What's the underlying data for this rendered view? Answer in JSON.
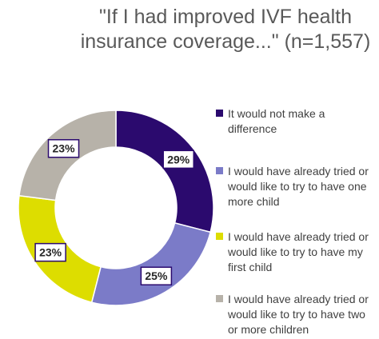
{
  "chart_data": {
    "type": "pie",
    "style": "donut",
    "title_lines": [
      "\"If I had improved IVF health",
      "insurance coverage...\" (n=1,557)"
    ],
    "slices": [
      {
        "label_lines": [
          "It would not make a",
          "difference"
        ],
        "value": 29,
        "display": "29%",
        "color": "#2B0A6E"
      },
      {
        "label_lines": [
          "I would have already tried or",
          "would like to try to have one",
          "more child"
        ],
        "value": 25,
        "display": "25%",
        "color": "#7B7BC8"
      },
      {
        "label_lines": [
          "I would have already tried or",
          "would like to try to have my",
          "first child"
        ],
        "value": 23,
        "display": "23%",
        "color": "#DDDD00"
      },
      {
        "label_lines": [
          "I would have already tried or",
          "would like to try to have two",
          "or more children"
        ],
        "value": 23,
        "display": "23%",
        "color": "#B7B2A9"
      }
    ],
    "legend_position": "right"
  }
}
